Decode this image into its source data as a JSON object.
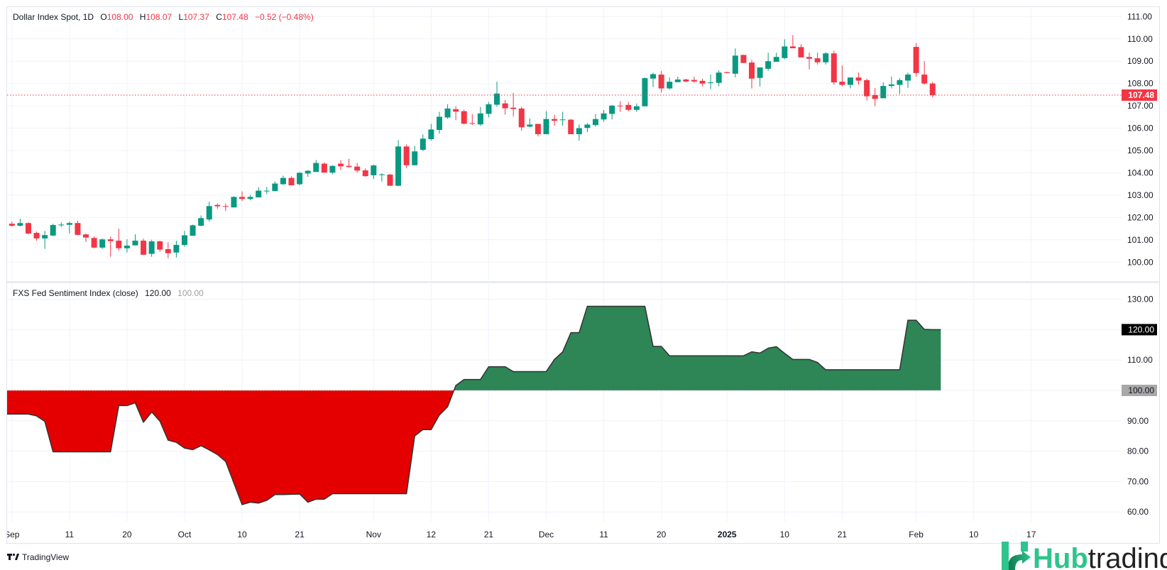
{
  "header": {
    "symbol": "Dollar Index Spot, 1D",
    "o_label": "O",
    "open": "108.00",
    "h_label": "H",
    "high": "108.07",
    "l_label": "L",
    "low": "107.37",
    "c_label": "C",
    "close": "107.48",
    "change": "−0.52 (−0.48%)"
  },
  "indicator": {
    "title": "FXS Fed Sentiment Index (close)",
    "value": "120.00",
    "base": "100.00"
  },
  "price_axis": {
    "labels": [
      "111.00",
      "110.00",
      "109.00",
      "108.00",
      "107.00",
      "106.00",
      "105.00",
      "104.00",
      "103.00",
      "102.00",
      "101.00",
      "100.00"
    ],
    "ticks": [
      111,
      110,
      109,
      108,
      107,
      106,
      105,
      104,
      103,
      102,
      101,
      100
    ],
    "last_price_label": "107.48",
    "last_price": 107.48
  },
  "indicator_axis": {
    "labels": [
      "130.00",
      "110.00",
      "90.00",
      "80.00",
      "70.00",
      "60.00"
    ],
    "ticks": [
      130,
      110,
      90,
      80,
      70,
      60
    ],
    "grid": [
      130,
      120,
      110,
      100,
      90,
      80,
      70,
      60
    ],
    "value_badge": "120.00",
    "value": 120,
    "base_badge": "100.00",
    "base": 100
  },
  "time_axis": [
    {
      "label": "Sep",
      "bar": 0
    },
    {
      "label": "11",
      "bar": 7
    },
    {
      "label": "20",
      "bar": 14
    },
    {
      "label": "Oct",
      "bar": 21
    },
    {
      "label": "10",
      "bar": 28
    },
    {
      "label": "21",
      "bar": 35
    },
    {
      "label": "Nov",
      "bar": 44
    },
    {
      "label": "12",
      "bar": 51
    },
    {
      "label": "21",
      "bar": 58
    },
    {
      "label": "Dec",
      "bar": 65
    },
    {
      "label": "11",
      "bar": 72
    },
    {
      "label": "20",
      "bar": 79
    },
    {
      "label": "2025",
      "bar": 87,
      "bold": true
    },
    {
      "label": "10",
      "bar": 94
    },
    {
      "label": "21",
      "bar": 101
    },
    {
      "label": "Feb",
      "bar": 110
    },
    {
      "label": "10",
      "bar": 117
    },
    {
      "label": "17",
      "bar": 124
    }
  ],
  "branding": {
    "tradingview": "TradingView",
    "hub": "Hub",
    "trading": "trading"
  },
  "colors": {
    "up": "#089981",
    "down": "#f23645",
    "area_above": "#2e8555",
    "area_below": "#e50000",
    "grid": "#f0f3fa",
    "text": "#131722",
    "hub_green": "#2fc48d"
  },
  "chart_data": [
    {
      "type": "candlestick",
      "title": "Dollar Index Spot, 1D",
      "ylim": [
        100,
        111
      ],
      "x_start": "2024-09-02",
      "x_end": "2025-02-05",
      "ohlc": [
        [
          101.72,
          101.81,
          101.59,
          101.63
        ],
        [
          101.63,
          101.94,
          101.59,
          101.75
        ],
        [
          101.75,
          101.78,
          101.24,
          101.28
        ],
        [
          101.31,
          101.37,
          100.96,
          101.06
        ],
        [
          101.06,
          101.4,
          100.59,
          101.21
        ],
        [
          101.19,
          101.72,
          101.16,
          101.66
        ],
        [
          101.66,
          101.78,
          101.57,
          101.68
        ],
        [
          101.67,
          101.81,
          101.28,
          101.75
        ],
        [
          101.75,
          101.85,
          101.2,
          101.22
        ],
        [
          101.24,
          101.28,
          100.9,
          101.1
        ],
        [
          101.08,
          101.15,
          100.62,
          100.65
        ],
        [
          100.65,
          101.05,
          100.59,
          101.02
        ],
        [
          101.02,
          101.15,
          100.24,
          100.94
        ],
        [
          100.96,
          101.5,
          100.51,
          100.62
        ],
        [
          100.62,
          101.02,
          100.43,
          100.74
        ],
        [
          100.75,
          101.24,
          100.75,
          100.96
        ],
        [
          100.96,
          101.05,
          100.33,
          100.33
        ],
        [
          100.37,
          101.0,
          100.24,
          100.93
        ],
        [
          100.93,
          100.96,
          100.46,
          100.56
        ],
        [
          100.58,
          100.89,
          100.17,
          100.4
        ],
        [
          100.43,
          100.96,
          100.21,
          100.77
        ],
        [
          100.77,
          101.4,
          100.69,
          101.2
        ],
        [
          101.18,
          101.68,
          101.18,
          101.65
        ],
        [
          101.63,
          102.09,
          101.6,
          101.97
        ],
        [
          101.91,
          102.7,
          101.82,
          102.51
        ],
        [
          102.56,
          102.63,
          102.39,
          102.5
        ],
        [
          102.51,
          102.63,
          102.29,
          102.49
        ],
        [
          102.45,
          102.95,
          102.45,
          102.92
        ],
        [
          102.92,
          103.17,
          102.74,
          102.83
        ],
        [
          102.83,
          103.01,
          102.77,
          102.92
        ],
        [
          102.9,
          103.36,
          102.9,
          103.2
        ],
        [
          103.18,
          103.36,
          103.05,
          103.2
        ],
        [
          103.18,
          103.62,
          103.18,
          103.52
        ],
        [
          103.49,
          103.87,
          103.46,
          103.77
        ],
        [
          103.77,
          103.84,
          103.44,
          103.44
        ],
        [
          103.49,
          104.03,
          103.44,
          104.0
        ],
        [
          103.97,
          104.12,
          103.82,
          104.09
        ],
        [
          104.04,
          104.57,
          104.04,
          104.44
        ],
        [
          104.41,
          104.47,
          104.01,
          104.01
        ],
        [
          104.01,
          104.34,
          103.94,
          104.31
        ],
        [
          104.41,
          104.57,
          104.13,
          104.29
        ],
        [
          104.31,
          104.63,
          104.23,
          104.26
        ],
        [
          104.28,
          104.44,
          104.01,
          104.1
        ],
        [
          104.11,
          104.2,
          103.82,
          103.85
        ],
        [
          103.89,
          104.37,
          103.72,
          104.33
        ],
        [
          103.91,
          103.98,
          103.61,
          103.93
        ],
        [
          103.92,
          103.95,
          103.42,
          103.42
        ],
        [
          103.42,
          105.46,
          103.4,
          105.18
        ],
        [
          105.18,
          105.27,
          104.21,
          104.34
        ],
        [
          104.34,
          105.21,
          104.34,
          104.96
        ],
        [
          105.03,
          105.72,
          104.97,
          105.53
        ],
        [
          105.51,
          106.19,
          105.44,
          105.94
        ],
        [
          105.92,
          106.73,
          105.76,
          106.51
        ],
        [
          106.48,
          107.07,
          106.42,
          106.88
        ],
        [
          106.85,
          106.98,
          106.36,
          106.74
        ],
        [
          106.76,
          106.82,
          106.17,
          106.2
        ],
        [
          106.23,
          106.63,
          106.14,
          106.2
        ],
        [
          106.17,
          106.95,
          106.1,
          106.66
        ],
        [
          106.64,
          107.17,
          106.48,
          107.07
        ],
        [
          107.05,
          108.08,
          106.96,
          107.55
        ],
        [
          107.11,
          107.26,
          106.61,
          106.89
        ],
        [
          106.92,
          107.58,
          106.52,
          106.86
        ],
        [
          106.88,
          106.95,
          105.88,
          106.04
        ],
        [
          106.07,
          106.44,
          106.04,
          106.16
        ],
        [
          106.19,
          106.19,
          105.63,
          105.73
        ],
        [
          105.73,
          106.76,
          105.73,
          106.41
        ],
        [
          106.41,
          106.6,
          106.11,
          106.33
        ],
        [
          106.36,
          106.73,
          106.11,
          106.39
        ],
        [
          106.38,
          106.41,
          105.73,
          105.73
        ],
        [
          105.73,
          106.16,
          105.44,
          106.0
        ],
        [
          106.01,
          106.22,
          105.82,
          106.16
        ],
        [
          106.14,
          106.63,
          106.07,
          106.41
        ],
        [
          106.39,
          106.82,
          106.29,
          106.66
        ],
        [
          106.64,
          107.04,
          106.39,
          107.01
        ],
        [
          107.01,
          107.2,
          106.73,
          106.99
        ],
        [
          107.04,
          107.17,
          106.76,
          106.82
        ],
        [
          106.82,
          107.11,
          106.73,
          106.98
        ],
        [
          106.98,
          108.27,
          106.98,
          108.24
        ],
        [
          108.22,
          108.49,
          107.84,
          108.42
        ],
        [
          108.4,
          108.56,
          107.59,
          107.78
        ],
        [
          107.78,
          108.27,
          107.72,
          108.08
        ],
        [
          108.06,
          108.31,
          108.06,
          108.18
        ],
        [
          108.18,
          108.21,
          108.06,
          108.09
        ],
        [
          108.16,
          108.31,
          108.03,
          108.09
        ],
        [
          108.12,
          108.21,
          107.87,
          108.0
        ],
        [
          108.03,
          108.4,
          107.75,
          108.05
        ],
        [
          108.03,
          108.59,
          107.87,
          108.49
        ],
        [
          108.51,
          108.52,
          108.46,
          108.47
        ],
        [
          108.44,
          109.57,
          108.28,
          109.25
        ],
        [
          109.28,
          109.29,
          108.92,
          108.92
        ],
        [
          108.94,
          109.06,
          107.78,
          108.22
        ],
        [
          108.25,
          108.72,
          107.87,
          108.72
        ],
        [
          108.66,
          109.38,
          108.57,
          109.0
        ],
        [
          108.97,
          109.38,
          108.97,
          109.19
        ],
        [
          109.14,
          109.98,
          109.09,
          109.66
        ],
        [
          109.66,
          110.17,
          109.58,
          109.58
        ],
        [
          109.63,
          109.76,
          109.17,
          109.17
        ],
        [
          109.19,
          109.38,
          108.63,
          109.11
        ],
        [
          109.13,
          109.38,
          108.85,
          108.95
        ],
        [
          108.95,
          109.41,
          108.85,
          109.35
        ],
        [
          109.35,
          109.47,
          107.94,
          108.05
        ],
        [
          108.08,
          108.81,
          107.87,
          107.94
        ],
        [
          107.94,
          108.27,
          107.78,
          108.27
        ],
        [
          108.27,
          108.49,
          107.94,
          108.13
        ],
        [
          108.15,
          108.21,
          107.24,
          107.43
        ],
        [
          107.48,
          107.8,
          106.98,
          107.31
        ],
        [
          107.34,
          108.05,
          107.34,
          107.89
        ],
        [
          107.89,
          108.31,
          107.78,
          107.96
        ],
        [
          107.94,
          108.24,
          107.53,
          108.15
        ],
        [
          108.13,
          108.49,
          107.8,
          108.4
        ],
        [
          109.64,
          109.81,
          108.3,
          108.47
        ],
        [
          108.4,
          109.0,
          107.95,
          108.0
        ],
        [
          108.0,
          108.07,
          107.37,
          107.48
        ]
      ]
    },
    {
      "type": "area",
      "title": "FXS Fed Sentiment Index (close)",
      "ylim": [
        55,
        135
      ],
      "baseline": 100,
      "values": [
        92.2,
        92.2,
        92.2,
        91.6,
        89.8,
        79.8,
        79.8,
        79.8,
        79.8,
        79.8,
        79.8,
        79.8,
        79.8,
        95.0,
        95.0,
        95.9,
        89.5,
        92.9,
        89.9,
        83.6,
        82.9,
        81.0,
        80.5,
        81.8,
        80.4,
        78.9,
        76.6,
        69.5,
        62.4,
        63.2,
        62.9,
        63.8,
        65.7,
        65.7,
        65.8,
        65.9,
        63.2,
        64.2,
        64.2,
        66.0,
        66.0,
        66.0,
        66.0,
        66.0,
        66.0,
        66.0,
        66.0,
        66.0,
        66.0,
        85.0,
        87.1,
        87.1,
        91.9,
        94.6,
        101.6,
        103.6,
        103.6,
        103.6,
        107.8,
        107.8,
        107.8,
        106.2,
        106.2,
        106.2,
        106.2,
        106.2,
        110.2,
        112.7,
        119.0,
        119.0,
        127.7,
        127.7,
        127.7,
        127.7,
        127.7,
        127.7,
        127.7,
        127.7,
        114.5,
        114.5,
        111.4,
        111.4,
        111.4,
        111.4,
        111.4,
        111.4,
        111.4,
        111.4,
        111.4,
        111.4,
        112.7,
        112.3,
        113.9,
        114.4,
        112.2,
        110.2,
        110.2,
        110.2,
        109.2,
        106.8,
        106.8,
        106.8,
        106.8,
        106.8,
        106.8,
        106.8,
        106.8,
        106.8,
        106.8,
        123.1,
        123.1,
        120.1,
        120.0,
        120.0
      ]
    }
  ]
}
